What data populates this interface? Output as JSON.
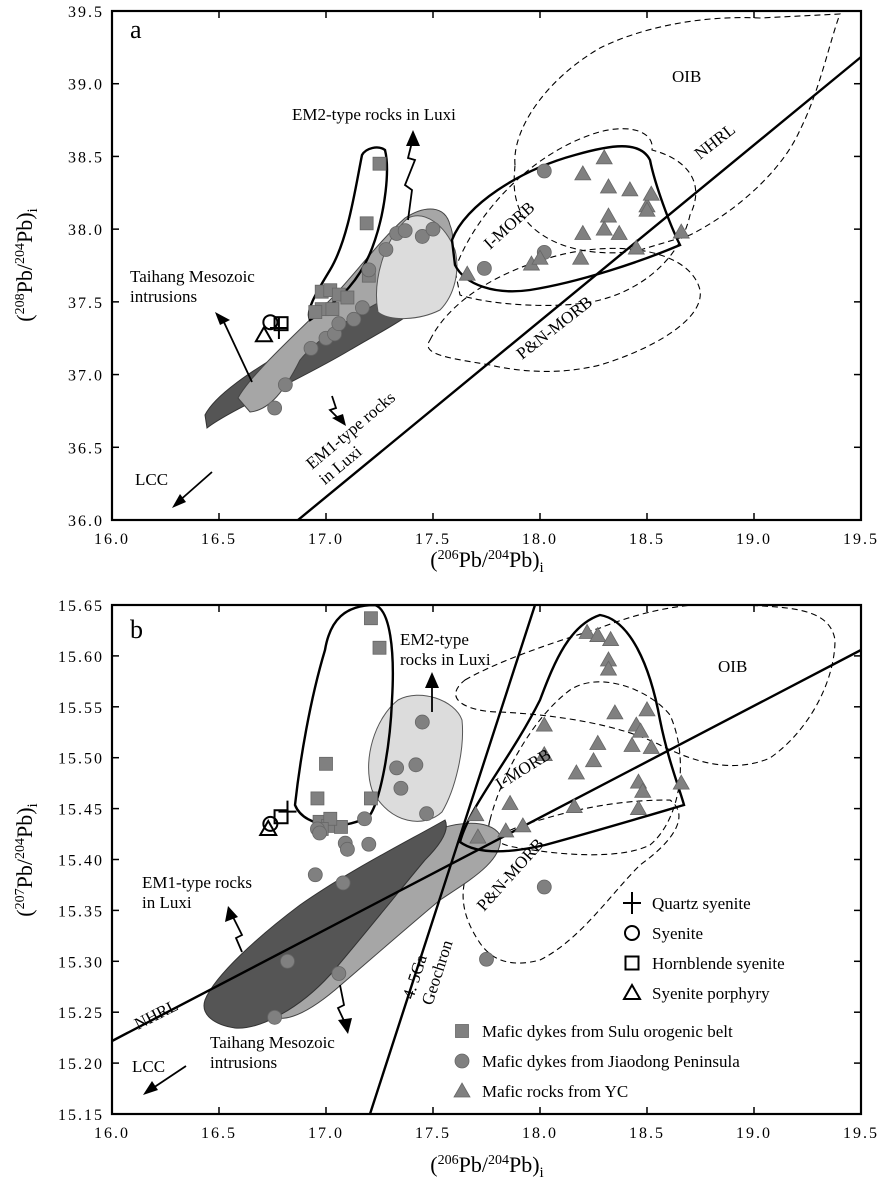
{
  "colors": {
    "frame": "#000000",
    "marker_fill": "#808080",
    "field_dark": "#555555",
    "field_mid": "#a6a6a6",
    "field_light": "#dcdcdc"
  },
  "chart_data": [
    {
      "type": "scatter",
      "panel": "a",
      "xlabel": "(206Pb/204Pb)i",
      "ylabel": "(208Pb/204Pb)i",
      "xlim": [
        16.0,
        19.5
      ],
      "ylim": [
        36.0,
        39.5
      ],
      "x_ticks": [
        "16.0",
        "16.5",
        "17.0",
        "17.5",
        "18.0",
        "18.5",
        "19.0",
        "19.5"
      ],
      "y_ticks": [
        "36.0",
        "36.5",
        "37.0",
        "37.5",
        "38.0",
        "38.5",
        "39.0",
        "39.5"
      ],
      "labels": {
        "oib": "OIB",
        "nhrl": "NHRL",
        "em2": "EM2-type rocks in Luxi",
        "imorb": "I-MORB",
        "pnmorb": "P&N-MORB",
        "taihang": "Taihang Mesozoic\nintrusions",
        "em1": "EM1-type rocks\nin Luxi",
        "lcc": "LCC"
      },
      "syenites": [
        {
          "name": "Quartz syenite",
          "symbol": "plus",
          "x": 16.78,
          "y": 37.32
        },
        {
          "name": "Syenite",
          "symbol": "circle",
          "x": 16.74,
          "y": 37.36
        },
        {
          "name": "Hornblende syenite",
          "symbol": "square",
          "x": 16.79,
          "y": 37.35
        },
        {
          "name": "Syenite porphyry",
          "symbol": "triangle",
          "x": 16.71,
          "y": 37.27
        }
      ],
      "series": [
        {
          "name": "Mafic dykes from Sulu orogenic belt",
          "symbol": "square",
          "points": [
            [
              17.25,
              38.45
            ],
            [
              17.19,
              38.04
            ],
            [
              17.2,
              37.68
            ],
            [
              16.98,
              37.57
            ],
            [
              17.02,
              37.58
            ],
            [
              17.06,
              37.55
            ],
            [
              17.1,
              37.53
            ],
            [
              16.98,
              37.45
            ],
            [
              17.03,
              37.45
            ],
            [
              16.95,
              37.43
            ]
          ]
        },
        {
          "name": "Mafic dykes from Jiaodong Peninsula",
          "symbol": "circle",
          "points": [
            [
              16.76,
              36.77
            ],
            [
              16.81,
              36.93
            ],
            [
              16.93,
              37.18
            ],
            [
              17.0,
              37.25
            ],
            [
              17.04,
              37.28
            ],
            [
              17.06,
              37.35
            ],
            [
              17.13,
              37.38
            ],
            [
              17.17,
              37.46
            ],
            [
              17.2,
              37.72
            ],
            [
              17.28,
              37.86
            ],
            [
              17.33,
              37.97
            ],
            [
              17.37,
              37.99
            ],
            [
              17.45,
              37.95
            ],
            [
              17.5,
              38.0
            ],
            [
              17.74,
              37.73
            ],
            [
              18.02,
              37.84
            ],
            [
              18.02,
              38.4
            ]
          ]
        },
        {
          "name": "Mafic rocks from YC",
          "symbol": "triangle",
          "points": [
            [
              17.66,
              37.69
            ],
            [
              17.96,
              37.76
            ],
            [
              18.0,
              37.8
            ],
            [
              18.2,
              37.97
            ],
            [
              18.19,
              37.8
            ],
            [
              18.2,
              38.38
            ],
            [
              18.3,
              38.49
            ],
            [
              18.32,
              38.09
            ],
            [
              18.32,
              38.29
            ],
            [
              18.3,
              38.0
            ],
            [
              18.37,
              37.97
            ],
            [
              18.42,
              38.27
            ],
            [
              18.45,
              37.87
            ],
            [
              18.5,
              38.16
            ],
            [
              18.52,
              38.24
            ],
            [
              18.5,
              38.13
            ],
            [
              18.66,
              37.98
            ]
          ]
        }
      ]
    },
    {
      "type": "scatter",
      "panel": "b",
      "xlabel": "(206Pb/204Pb)i",
      "ylabel": "(207Pb/204Pb)i",
      "xlim": [
        16.0,
        19.5
      ],
      "ylim": [
        15.15,
        15.65
      ],
      "x_ticks": [
        "16.0",
        "16.5",
        "17.0",
        "17.5",
        "18.0",
        "18.5",
        "19.0",
        "19.5"
      ],
      "y_ticks": [
        "15.15",
        "15.20",
        "15.25",
        "15.30",
        "15.35",
        "15.40",
        "15.45",
        "15.50",
        "15.55",
        "15.60",
        "15.65"
      ],
      "labels": {
        "oib": "OIB",
        "nhrl": "NHRL",
        "em2": "EM2-type\nrocks in Luxi",
        "imorb": "I-MORB",
        "pnmorb": "P&N-MORB",
        "geochron": "4. 5Ga\nGeochron",
        "em1": "EM1-type rocks\nin Luxi",
        "taihang": "Taihang  Mesozoic\nintrusions",
        "lcc": "LCC"
      },
      "syenites": [
        {
          "name": "Quartz syenite",
          "symbol": "plus",
          "x": 16.82,
          "y": 15.447
        },
        {
          "name": "Syenite",
          "symbol": "circle",
          "x": 16.74,
          "y": 15.435
        },
        {
          "name": "Hornblende syenite",
          "symbol": "square",
          "x": 16.79,
          "y": 15.442
        },
        {
          "name": "Syenite porphyry",
          "symbol": "triangle",
          "x": 16.73,
          "y": 15.43
        }
      ],
      "series": [
        {
          "name": "Mafic dykes from Sulu orogenic belt",
          "symbol": "square",
          "points": [
            [
              17.21,
              15.637
            ],
            [
              17.25,
              15.608
            ],
            [
              17.0,
              15.494
            ],
            [
              16.96,
              15.46
            ],
            [
              17.21,
              15.46
            ],
            [
              16.97,
              15.437
            ],
            [
              17.01,
              15.433
            ],
            [
              17.07,
              15.432
            ],
            [
              17.02,
              15.44
            ],
            [
              16.98,
              15.43
            ]
          ]
        },
        {
          "name": "Mafic dykes from Jiaodong Peninsula",
          "symbol": "circle",
          "points": [
            [
              17.45,
              15.535
            ],
            [
              17.33,
              15.49
            ],
            [
              17.42,
              15.493
            ],
            [
              17.47,
              15.445
            ],
            [
              17.35,
              15.47
            ],
            [
              17.18,
              15.44
            ],
            [
              16.96,
              15.43
            ],
            [
              16.97,
              15.426
            ],
            [
              17.09,
              15.416
            ],
            [
              17.1,
              15.41
            ],
            [
              17.2,
              15.415
            ],
            [
              16.95,
              15.385
            ],
            [
              17.08,
              15.377
            ],
            [
              16.82,
              15.3
            ],
            [
              17.06,
              15.288
            ],
            [
              16.76,
              15.245
            ],
            [
              18.02,
              15.373
            ],
            [
              17.75,
              15.302
            ]
          ]
        },
        {
          "name": "Mafic rocks from YC",
          "symbol": "triangle",
          "points": [
            [
              18.22,
              15.623
            ],
            [
              18.27,
              15.62
            ],
            [
              18.33,
              15.616
            ],
            [
              18.32,
              15.596
            ],
            [
              18.32,
              15.587
            ],
            [
              18.02,
              15.532
            ],
            [
              18.35,
              15.544
            ],
            [
              18.5,
              15.547
            ],
            [
              18.45,
              15.532
            ],
            [
              18.47,
              15.526
            ],
            [
              18.02,
              15.503
            ],
            [
              18.27,
              15.514
            ],
            [
              18.43,
              15.512
            ],
            [
              18.52,
              15.51
            ],
            [
              18.17,
              15.485
            ],
            [
              18.25,
              15.497
            ],
            [
              18.46,
              15.476
            ],
            [
              18.48,
              15.467
            ],
            [
              17.86,
              15.455
            ],
            [
              18.16,
              15.452
            ],
            [
              18.46,
              15.45
            ],
            [
              18.66,
              15.475
            ],
            [
              17.84,
              15.428
            ],
            [
              17.92,
              15.433
            ],
            [
              17.7,
              15.444
            ],
            [
              17.71,
              15.422
            ]
          ]
        }
      ]
    }
  ],
  "legend": [
    {
      "label": "Quartz syenite",
      "symbol": "plus"
    },
    {
      "label": "Syenite",
      "symbol": "circle"
    },
    {
      "label": "Hornblende syenite",
      "symbol": "square"
    },
    {
      "label": "Syenite porphyry",
      "symbol": "triangle"
    },
    {
      "label": "Mafic dykes from Sulu orogenic belt",
      "symbol": "square-filled"
    },
    {
      "label": "Mafic dykes from Jiaodong Peninsula",
      "symbol": "circle-filled"
    },
    {
      "label": "Mafic rocks from YC",
      "symbol": "triangle-filled"
    }
  ]
}
